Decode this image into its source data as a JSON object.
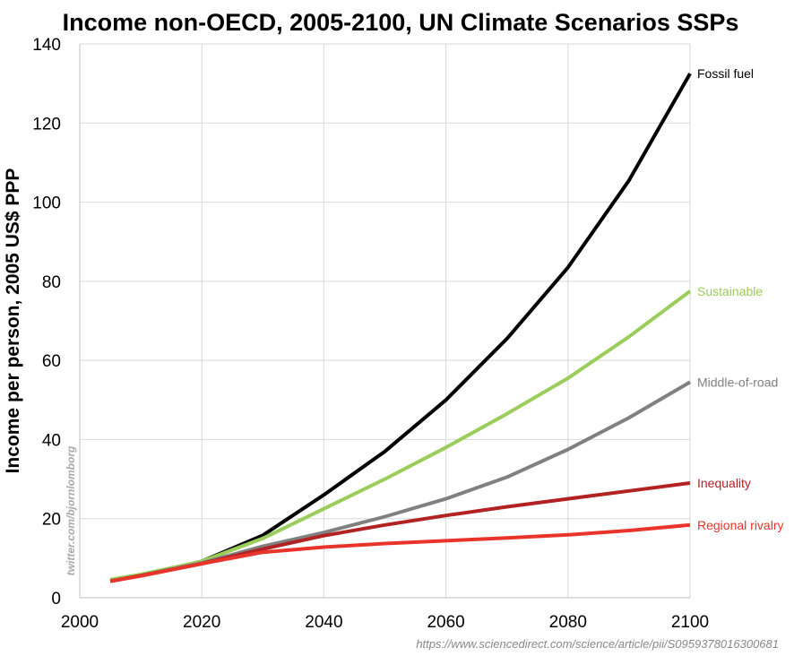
{
  "chart_data": {
    "type": "line",
    "title": "Income non-OECD, 2005-2100, UN Climate Scenarios SSPs",
    "xlabel": "",
    "ylabel": "Income per person, 2005 US$ PPP",
    "xlim": [
      2000,
      2100
    ],
    "ylim": [
      0,
      140
    ],
    "xticks": [
      2000,
      2020,
      2040,
      2060,
      2080,
      2100
    ],
    "yticks": [
      0,
      20,
      40,
      60,
      80,
      100,
      120,
      140
    ],
    "grid": true,
    "legend": "inline labels at line ends (right)",
    "x": [
      2005,
      2010,
      2020,
      2030,
      2040,
      2050,
      2060,
      2070,
      2080,
      2090,
      2100
    ],
    "series": [
      {
        "name": "Fossil fuel",
        "color": "#000000",
        "values": [
          4.2,
          5.7,
          9.2,
          15.8,
          26,
          37,
          50,
          65.5,
          83.5,
          105.5,
          132.5
        ]
      },
      {
        "name": "Sustainable",
        "color": "#9acd5a",
        "values": [
          4.6,
          5.9,
          9.2,
          15,
          22.5,
          30,
          38,
          46.5,
          55.5,
          66,
          77.5
        ]
      },
      {
        "name": "Middle-of-road",
        "color": "#808080",
        "values": [
          4.2,
          5.6,
          8.8,
          13,
          16.5,
          20.5,
          25,
          30.5,
          37.5,
          45.5,
          54.5
        ]
      },
      {
        "name": "Inequality",
        "color": "#b22222",
        "values": [
          4.2,
          5.6,
          8.6,
          12.3,
          15.7,
          18.4,
          20.8,
          23,
          25,
          27,
          29
        ]
      },
      {
        "name": "Regional rivalry",
        "color": "#e8342a",
        "values": [
          4.2,
          5.5,
          8.6,
          11.5,
          12.8,
          13.7,
          14.4,
          15.1,
          15.9,
          17,
          18.4
        ]
      }
    ],
    "watermark": "twitter.com/bjornlomborg",
    "source": "https://www.sciencedirect.com/science/article/pii/S0959378016300681"
  }
}
